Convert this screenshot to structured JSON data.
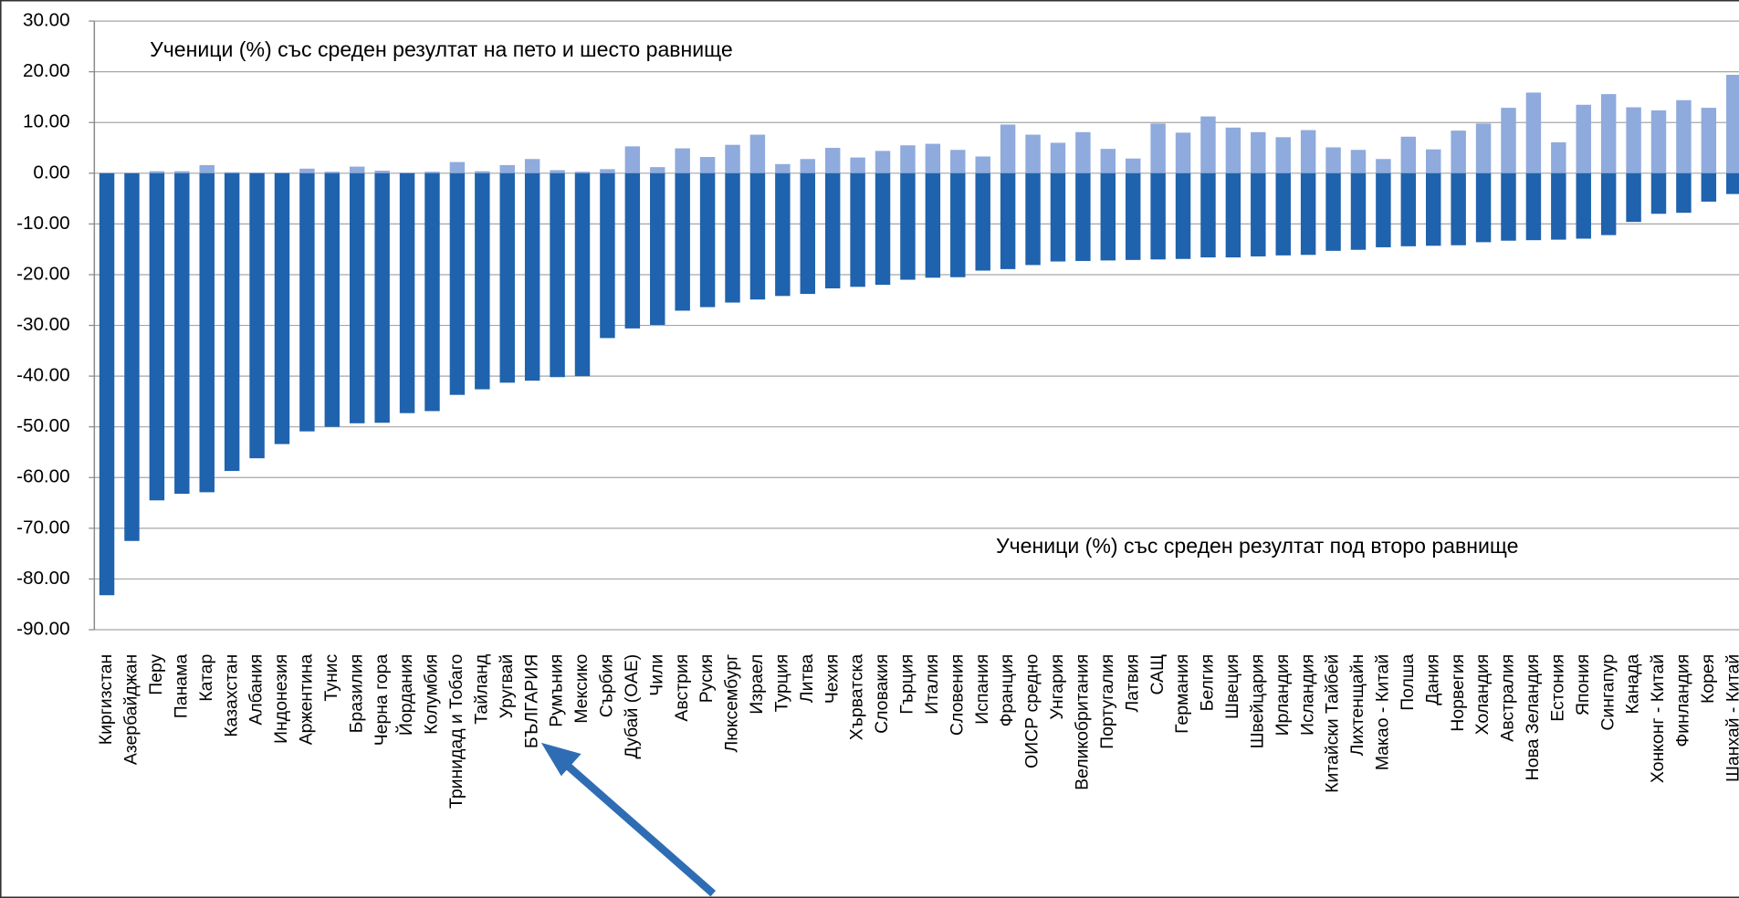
{
  "chart_data": {
    "type": "bar",
    "categories": [
      "Киргизстан",
      "Азербайджан",
      "Перу",
      "Панама",
      "Катар",
      "Казахстан",
      "Албания",
      "Индонезия",
      "Аржентина",
      "Тунис",
      "Бразилия",
      "Черна гора",
      "Йордания",
      "Колумбия",
      "Тринидад и Тобаго",
      "Тайланд",
      "Уругвай",
      "БЪЛГАРИЯ",
      "Румъния",
      "Мексико",
      "Сърбия",
      "Дубай (ОАЕ)",
      "Чили",
      "Австрия",
      "Русия",
      "Люксембург",
      "Израел",
      "Турция",
      "Литва",
      "Чехия",
      "Хърватска",
      "Словакия",
      "Гърция",
      "Италия",
      "Словения",
      "Испания",
      "Франция",
      "ОИСР средно",
      "Унгария",
      "Великобритания",
      "Португалия",
      "Латвия",
      "САЩ",
      "Германия",
      "Белгия",
      "Швеция",
      "Швейцария",
      "Ирландия",
      "Исландия",
      "Китайски Тайбей",
      "Лихтенщайн",
      "Макао - Китай",
      "Полша",
      "Дания",
      "Норвегия",
      "Холандия",
      "Австралия",
      "Нова Зеландия",
      "Естония",
      "Япония",
      "Сингапур",
      "Канада",
      "Хонконг - Китай",
      "Финландия",
      "Корея",
      "Шанхай - Китай"
    ],
    "series": [
      {
        "name": "Ученици (%) със среден резултат на пето и шесто равнище",
        "color": "#8faadc",
        "values": [
          0,
          0,
          0.4,
          0.4,
          1.6,
          0.2,
          0.1,
          0.1,
          0.9,
          0.3,
          1.3,
          0.5,
          0.1,
          0.3,
          2.2,
          0.4,
          1.6,
          2.8,
          0.6,
          0.3,
          0.8,
          5.3,
          1.2,
          4.9,
          3.2,
          5.6,
          7.6,
          1.8,
          2.8,
          5.0,
          3.1,
          4.4,
          5.5,
          5.8,
          4.6,
          3.3,
          9.6,
          7.6,
          6.0,
          8.1,
          4.8,
          2.9,
          9.8,
          8.0,
          11.2,
          9.0,
          8.1,
          7.1,
          8.5,
          5.1,
          4.6,
          2.8,
          7.2,
          4.7,
          8.4,
          9.8,
          12.9,
          15.9,
          6.1,
          13.5,
          15.6,
          13.0,
          12.4,
          14.4,
          12.9,
          19.4
        ]
      },
      {
        "name": "Ученици (%) със среден резултат под второ равнище",
        "color": "#1f62ad",
        "values": [
          -83.2,
          -72.5,
          -64.5,
          -63.2,
          -62.9,
          -58.7,
          -56.2,
          -53.4,
          -50.9,
          -50.0,
          -49.3,
          -49.2,
          -47.3,
          -46.9,
          -43.7,
          -42.6,
          -41.3,
          -40.9,
          -40.2,
          -40.0,
          -32.5,
          -30.6,
          -29.9,
          -27.1,
          -26.4,
          -25.5,
          -24.9,
          -24.2,
          -23.8,
          -22.7,
          -22.4,
          -22.0,
          -21.0,
          -20.6,
          -20.5,
          -19.2,
          -18.9,
          -18.1,
          -17.4,
          -17.3,
          -17.2,
          -17.1,
          -17.0,
          -16.9,
          -16.6,
          -16.6,
          -16.4,
          -16.2,
          -16.1,
          -15.3,
          -15.1,
          -14.6,
          -14.4,
          -14.3,
          -14.2,
          -13.6,
          -13.3,
          -13.2,
          -13.1,
          -12.9,
          -12.2,
          -9.6,
          -8.0,
          -7.8,
          -5.6,
          -4.1
        ]
      }
    ],
    "ylim": [
      -90,
      30
    ],
    "yticks": [
      {
        "value": 30,
        "label": "30.00"
      },
      {
        "value": 20,
        "label": "20.00"
      },
      {
        "value": 10,
        "label": "10.00"
      },
      {
        "value": 0,
        "label": "0.00"
      },
      {
        "value": -10,
        "label": "-10.00"
      },
      {
        "value": -20,
        "label": "-20.00"
      },
      {
        "value": -30,
        "label": "-30.00"
      },
      {
        "value": -40,
        "label": "-40.00"
      },
      {
        "value": -50,
        "label": "-50.00"
      },
      {
        "value": -60,
        "label": "-60.00"
      },
      {
        "value": -70,
        "label": "-70.00"
      },
      {
        "value": -80,
        "label": "-80.00"
      },
      {
        "value": -90,
        "label": "-90.00"
      }
    ],
    "grid": true
  }
}
